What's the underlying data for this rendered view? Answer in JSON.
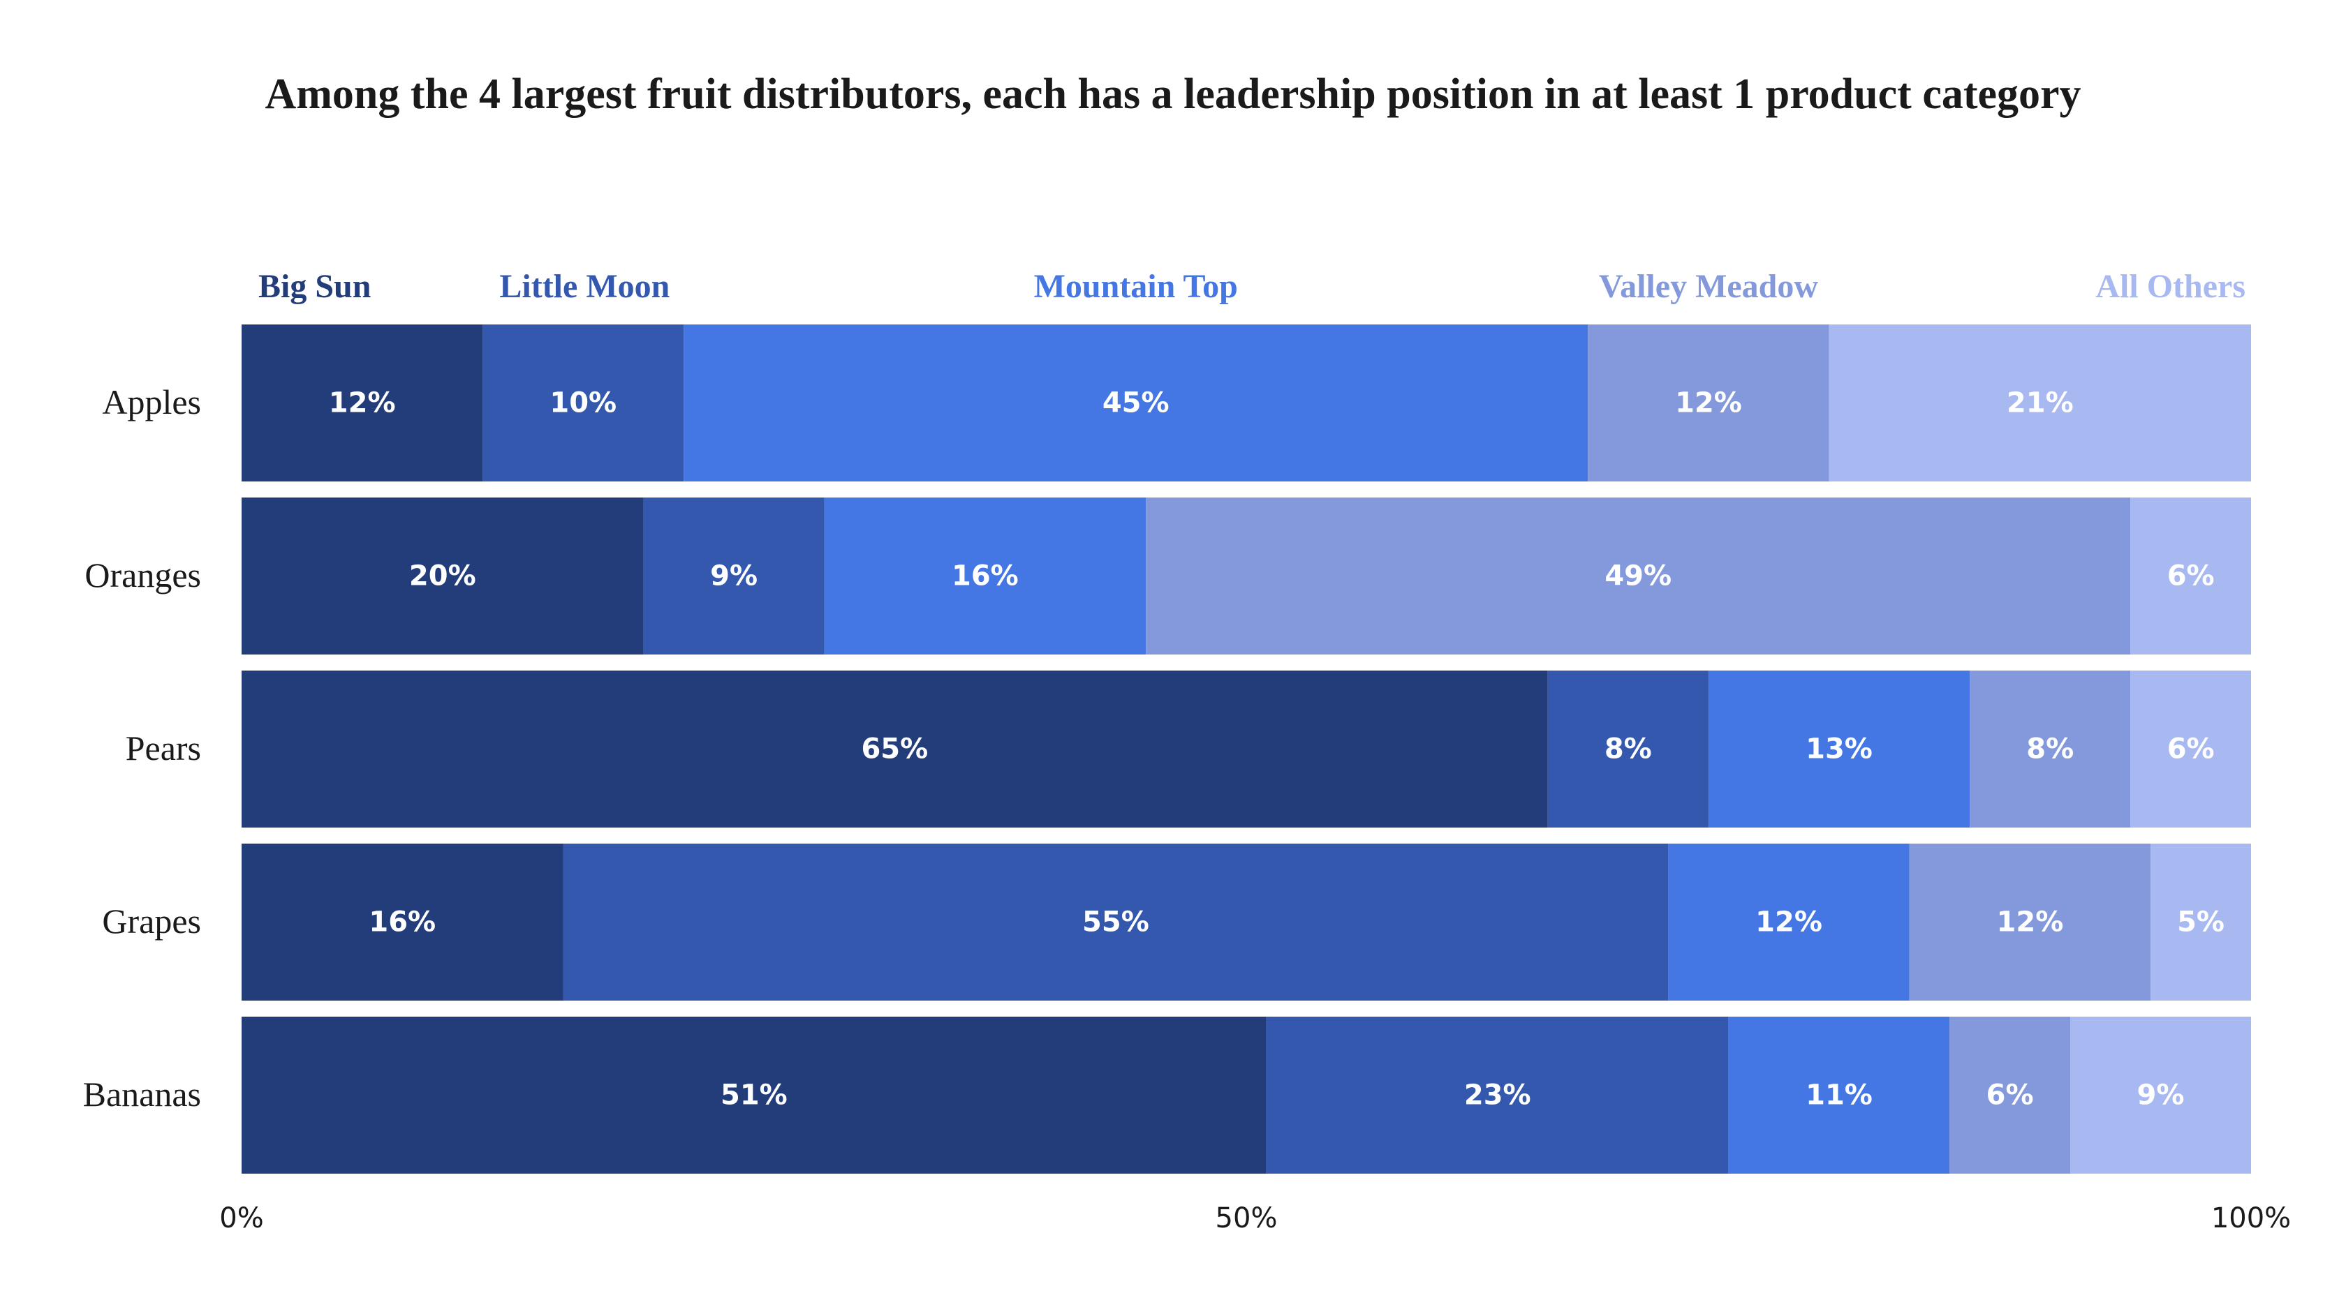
{
  "chart_data": {
    "type": "stacked-bar-horizontal",
    "title": "Among the 4 largest fruit distributors, each has a leadership position in at least 1 product category",
    "categories": [
      "Apples",
      "Oranges",
      "Pears",
      "Grapes",
      "Bananas"
    ],
    "series": [
      {
        "name": "Big Sun",
        "color": "#233d7a",
        "values": [
          12,
          20,
          65,
          16,
          51
        ],
        "value_labels": [
          "12%",
          "20%",
          "65%",
          "16%",
          "51%"
        ]
      },
      {
        "name": "Little Moon",
        "color": "#3358ad",
        "values": [
          10,
          9,
          8,
          55,
          23
        ],
        "value_labels": [
          "10%",
          "9%",
          "8%",
          "55%",
          "23%"
        ]
      },
      {
        "name": "Mountain Top",
        "color": "#4477e3",
        "values": [
          45,
          16,
          13,
          12,
          11
        ],
        "value_labels": [
          "45%",
          "16%",
          "13%",
          "12%",
          "11%"
        ]
      },
      {
        "name": "Valley Meadow",
        "color": "#8399db",
        "values": [
          12,
          49,
          8,
          12,
          6
        ],
        "value_labels": [
          "12%",
          "49%",
          "8%",
          "12%",
          "6%"
        ]
      },
      {
        "name": "All Others",
        "color": "#a8b8f0",
        "values": [
          21,
          6,
          6,
          5,
          9
        ],
        "value_labels": [
          "21%",
          "6%",
          "6%",
          "5%",
          "9%"
        ]
      }
    ],
    "xlim": [
      0,
      100
    ],
    "xticks": [
      {
        "value": 0,
        "label": "0%"
      },
      {
        "value": 50,
        "label": "50%"
      },
      {
        "value": 100,
        "label": "100%"
      }
    ]
  }
}
